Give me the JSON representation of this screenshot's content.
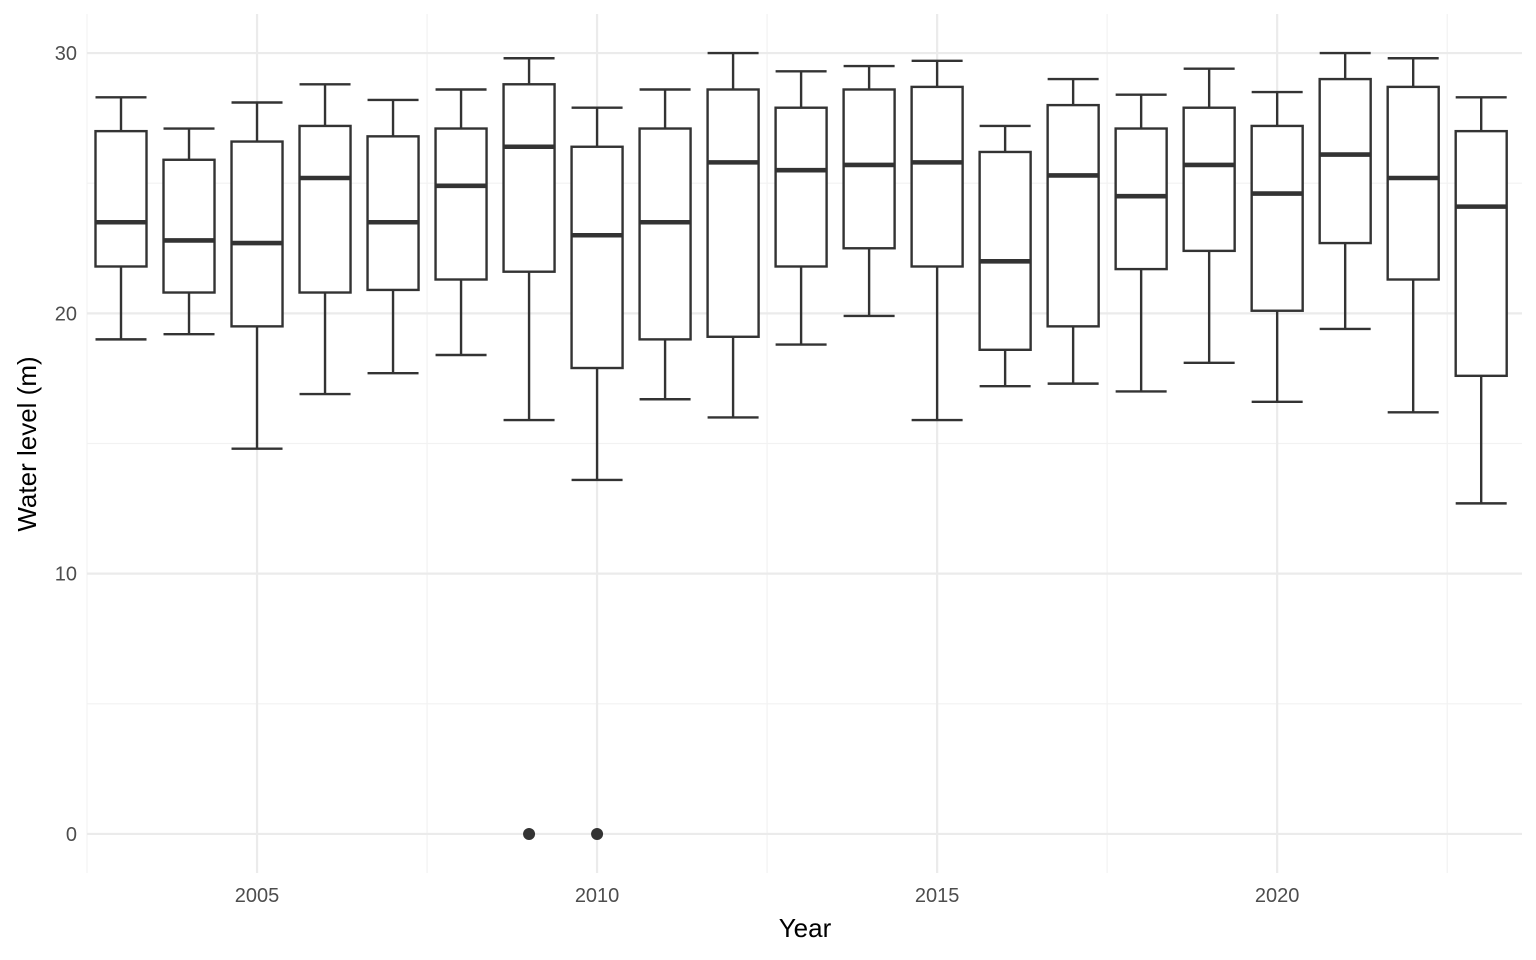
{
  "chart_data": {
    "type": "boxplot",
    "title": "",
    "xlabel": "Year",
    "ylabel": "Water level (m)",
    "xlim": [
      2002.5,
      2023.6
    ],
    "ylim": [
      -1.5,
      31.5
    ],
    "x_ticks": [
      "2005",
      "2010",
      "2015",
      "2020"
    ],
    "y_ticks": [
      "0",
      "10",
      "20",
      "30"
    ],
    "grid": true,
    "legend": "none",
    "colors": {
      "box_stroke": "#333333",
      "box_fill": "#ffffff",
      "grid_major": "#ebebeb",
      "grid_minor": "#f2f2f2",
      "tick_text": "#4d4d4d",
      "axis_title": "#000000"
    },
    "boxes": [
      {
        "year": 2003,
        "whisker_low": 19.0,
        "q1": 21.8,
        "median": 23.5,
        "q3": 27.0,
        "whisker_high": 28.3
      },
      {
        "year": 2004,
        "whisker_low": 19.2,
        "q1": 20.8,
        "median": 22.8,
        "q3": 25.9,
        "whisker_high": 27.1
      },
      {
        "year": 2005,
        "whisker_low": 14.8,
        "q1": 19.5,
        "median": 22.7,
        "q3": 26.6,
        "whisker_high": 28.1
      },
      {
        "year": 2006,
        "whisker_low": 16.9,
        "q1": 20.8,
        "median": 25.2,
        "q3": 27.2,
        "whisker_high": 28.8
      },
      {
        "year": 2007,
        "whisker_low": 17.7,
        "q1": 20.9,
        "median": 23.5,
        "q3": 26.8,
        "whisker_high": 28.2
      },
      {
        "year": 2008,
        "whisker_low": 18.4,
        "q1": 21.3,
        "median": 24.9,
        "q3": 27.1,
        "whisker_high": 28.6
      },
      {
        "year": 2009,
        "whisker_low": 15.9,
        "q1": 21.6,
        "median": 26.4,
        "q3": 28.8,
        "whisker_high": 29.8
      },
      {
        "year": 2010,
        "whisker_low": 13.6,
        "q1": 17.9,
        "median": 23.0,
        "q3": 26.4,
        "whisker_high": 27.9
      },
      {
        "year": 2011,
        "whisker_low": 16.7,
        "q1": 19.0,
        "median": 23.5,
        "q3": 27.1,
        "whisker_high": 28.6
      },
      {
        "year": 2012,
        "whisker_low": 16.0,
        "q1": 19.1,
        "median": 25.8,
        "q3": 28.6,
        "whisker_high": 30.0
      },
      {
        "year": 2013,
        "whisker_low": 18.8,
        "q1": 21.8,
        "median": 25.5,
        "q3": 27.9,
        "whisker_high": 29.3
      },
      {
        "year": 2014,
        "whisker_low": 19.9,
        "q1": 22.5,
        "median": 25.7,
        "q3": 28.6,
        "whisker_high": 29.5
      },
      {
        "year": 2015,
        "whisker_low": 15.9,
        "q1": 21.8,
        "median": 25.8,
        "q3": 28.7,
        "whisker_high": 29.7
      },
      {
        "year": 2016,
        "whisker_low": 17.2,
        "q1": 18.6,
        "median": 22.0,
        "q3": 26.2,
        "whisker_high": 27.2
      },
      {
        "year": 2017,
        "whisker_low": 17.3,
        "q1": 19.5,
        "median": 25.3,
        "q3": 28.0,
        "whisker_high": 29.0
      },
      {
        "year": 2018,
        "whisker_low": 17.0,
        "q1": 21.7,
        "median": 24.5,
        "q3": 27.1,
        "whisker_high": 28.4
      },
      {
        "year": 2019,
        "whisker_low": 18.1,
        "q1": 22.4,
        "median": 25.7,
        "q3": 27.9,
        "whisker_high": 29.4
      },
      {
        "year": 2020,
        "whisker_low": 16.6,
        "q1": 20.1,
        "median": 24.6,
        "q3": 27.2,
        "whisker_high": 28.5
      },
      {
        "year": 2021,
        "whisker_low": 19.4,
        "q1": 22.7,
        "median": 26.1,
        "q3": 29.0,
        "whisker_high": 30.0
      },
      {
        "year": 2022,
        "whisker_low": 16.2,
        "q1": 21.3,
        "median": 25.2,
        "q3": 28.7,
        "whisker_high": 29.8
      },
      {
        "year": 2023,
        "whisker_low": 12.7,
        "q1": 17.6,
        "median": 24.1,
        "q3": 27.0,
        "whisker_high": 28.3
      }
    ],
    "outliers": [
      {
        "year": 2009,
        "value": 0
      },
      {
        "year": 2010,
        "value": 0
      }
    ]
  }
}
